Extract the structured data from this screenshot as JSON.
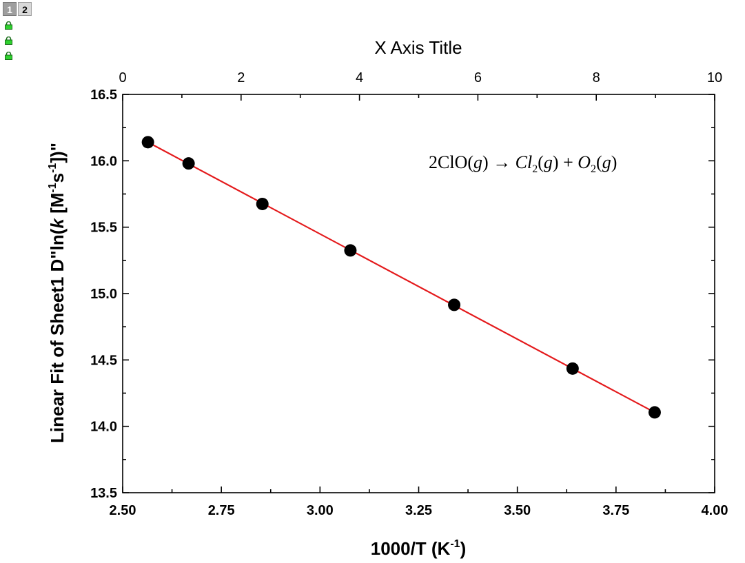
{
  "window": {
    "page_tabs": [
      "1",
      "2"
    ]
  },
  "icons": [
    "lock-icon",
    "lock-icon",
    "lock-icon"
  ],
  "colors": {
    "fit_line": "#e41a1c",
    "points": "#000000",
    "lock_icon": "#2fd12f"
  },
  "chart_data": {
    "type": "scatter",
    "xlabel_bottom": "1000/T (K",
    "xlabel_bottom_sup": "-1",
    "xlabel_bottom_end": ")",
    "xlabel_top": "X Axis Title",
    "ylabel_parts": [
      "Linear Fit of Sheet1 D\"ln(",
      "k",
      " [M",
      "-1",
      "s",
      "-1",
      "])\""
    ],
    "xlim_bottom": [
      2.5,
      4.0
    ],
    "xticks_bottom": [
      "2.50",
      "2.75",
      "3.00",
      "3.25",
      "3.50",
      "3.75",
      "4.00"
    ],
    "xlim_top": [
      0,
      10
    ],
    "xticks_top": [
      "0",
      "2",
      "4",
      "6",
      "8",
      "10"
    ],
    "ylim": [
      13.5,
      16.5
    ],
    "yticks": [
      "13.5",
      "14.0",
      "14.5",
      "15.0",
      "15.5",
      "16.0",
      "16.5"
    ],
    "grid": false,
    "series": [
      {
        "type": "scatter",
        "x": [
          2.564,
          2.667,
          2.854,
          3.077,
          3.34,
          3.64,
          3.848
        ],
        "y": [
          16.14,
          15.98,
          15.675,
          15.325,
          14.915,
          14.435,
          14.105
        ]
      },
      {
        "type": "line",
        "x": [
          2.564,
          3.848
        ],
        "y": [
          16.14,
          14.105
        ]
      }
    ],
    "annotation": {
      "parts": [
        "2ClO(",
        "g",
        ") → ",
        "Cl",
        "2",
        "(",
        "g",
        ") + ",
        "O",
        "2",
        "(",
        "g",
        ")"
      ]
    }
  }
}
